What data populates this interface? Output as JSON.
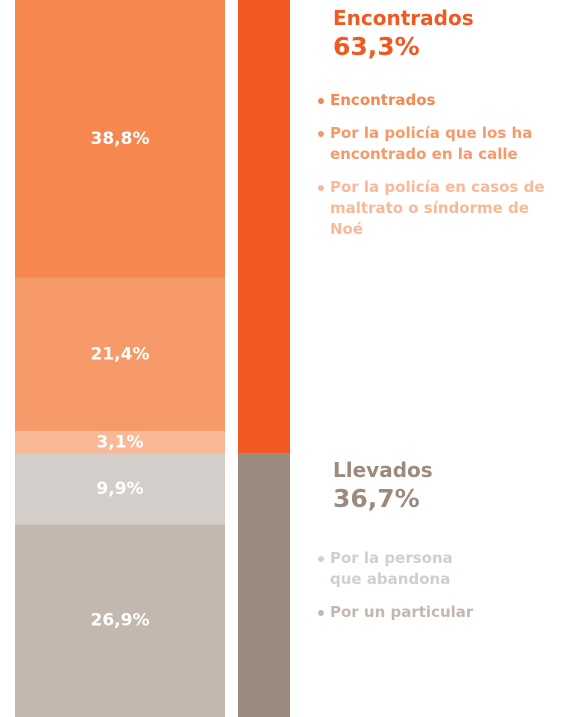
{
  "chart_data": {
    "type": "stacked_bar",
    "groups": [
      {
        "name": "Encontrados",
        "color": "#f05a22",
        "value": 63.3,
        "value_label": "63,3%",
        "series": [
          {
            "name": "Encontrados",
            "color": "#f5874f",
            "values": [
              38.8
            ],
            "value_labels": [
              "38,8%"
            ]
          },
          {
            "name": "Por la policía que los ha encontrado en la calle",
            "color": "#f79a6a",
            "values": [
              21.4
            ],
            "value_labels": [
              "21,4%"
            ]
          },
          {
            "name": "Por la policía en casos de maltrato o síndorme de Noé",
            "color": "#f9b896",
            "values": [
              3.1
            ],
            "value_labels": [
              "3,1%"
            ]
          }
        ]
      },
      {
        "name": "Llevados",
        "color": "#9b8b7e",
        "value": 36.7,
        "value_label": "36,7%",
        "series": [
          {
            "name": "Por la persona que abandona",
            "color": "#d4ceca",
            "values": [
              9.9
            ],
            "value_labels": [
              "9,9%"
            ]
          },
          {
            "name": "Por un particular",
            "color": "#c2b8b0",
            "values": [
              26.9
            ],
            "value_labels": [
              "26,9%"
            ]
          }
        ]
      }
    ]
  }
}
